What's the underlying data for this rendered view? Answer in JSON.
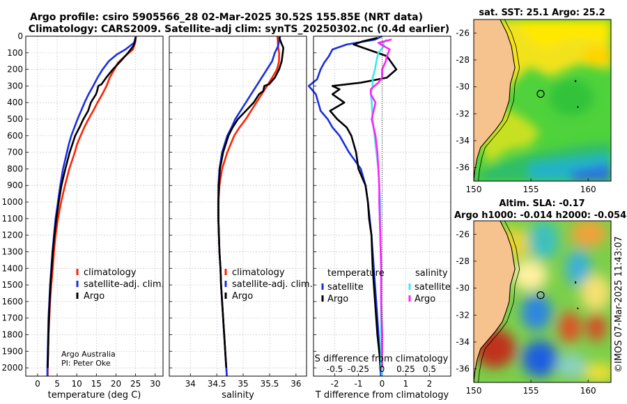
{
  "title_line1": "Argo profile: csiro 5905566_28 02-Mar-2025 30.52S 155.85E (NRT data)",
  "title_line2": "Climatology: CARS2009. Satellite-adj clim: synTS_20250302.nc (0.4d earlier)",
  "credit_line1": "Argo Australia",
  "credit_line2": "PI: Peter Oke",
  "side_label": "©IMOS 07-Mar-2025 11:43:07",
  "colors": {
    "climatology": "#ff2200",
    "satellite": "#1a2ee0",
    "argo": "#000000",
    "sat_s": "#40e8e8",
    "argo_s": "#ff22ff"
  },
  "chart_data": [
    {
      "type": "line",
      "panel": "temperature",
      "xlabel": "temperature (deg C)",
      "ylabel": "",
      "xlim": [
        -3,
        32
      ],
      "ylim": [
        2050,
        0
      ],
      "xticks": [
        0,
        5,
        10,
        15,
        20,
        25,
        30
      ],
      "xtick_labels": [
        "0",
        "5",
        "10",
        "15",
        "20",
        "25",
        "30"
      ],
      "yticks": [
        0,
        100,
        200,
        300,
        400,
        500,
        600,
        700,
        800,
        900,
        1000,
        1100,
        1200,
        1300,
        1400,
        1500,
        1600,
        1700,
        1800,
        1900,
        2000
      ],
      "ytick_labels": [
        "0",
        "100",
        "200",
        "300",
        "400",
        "500",
        "600",
        "700",
        "800",
        "900",
        "1000",
        "1100",
        "1200",
        "1300",
        "1400",
        "1500",
        "1600",
        "1700",
        "1800",
        "1900",
        "2000"
      ],
      "legend": [
        "climatology",
        "satellite-adj. clim.",
        "Argo"
      ],
      "series": [
        {
          "name": "climatology",
          "depth": [
            0,
            40,
            80,
            120,
            160,
            200,
            250,
            300,
            350,
            400,
            450,
            500,
            550,
            600,
            650,
            700,
            800,
            900,
            1000,
            1100,
            1200,
            1300,
            1400,
            1500,
            1600,
            1700,
            1800,
            1900,
            2000,
            2050
          ],
          "values": [
            25.1,
            24.9,
            24.3,
            22.3,
            20.5,
            19.6,
            18.4,
            17.6,
            16.5,
            15.3,
            14.2,
            13.0,
            11.9,
            11.0,
            10.1,
            9.5,
            8.1,
            7.0,
            6.0,
            5.2,
            4.6,
            4.2,
            3.9,
            3.5,
            3.2,
            3.0,
            2.8,
            2.7,
            2.6,
            2.6
          ]
        },
        {
          "name": "satellite-adj. clim.",
          "depth": [
            0,
            40,
            80,
            110,
            150,
            200,
            250,
            300,
            350,
            400,
            450,
            500,
            550,
            600,
            650,
            700,
            800,
            900,
            1000,
            1100,
            1200,
            1300,
            1400,
            1500,
            1600,
            1700,
            1800,
            1900,
            2000,
            2050
          ],
          "values": [
            25.1,
            24.6,
            22.4,
            20.2,
            18.2,
            16.6,
            15.3,
            14.2,
            13.0,
            12.0,
            11.1,
            10.2,
            9.4,
            8.6,
            8.0,
            7.5,
            6.5,
            5.8,
            5.2,
            4.6,
            4.2,
            3.8,
            3.5,
            3.2,
            3.0,
            2.8,
            2.7,
            2.6,
            2.5,
            2.5
          ]
        },
        {
          "name": "Argo",
          "depth": [
            5,
            30,
            60,
            100,
            150,
            200,
            250,
            290,
            300,
            330,
            350,
            400,
            450,
            500,
            550,
            600,
            650,
            700,
            800,
            900,
            1000,
            1100,
            1200,
            1300,
            1400,
            1500,
            1600,
            1700,
            1800,
            1900,
            2000
          ],
          "values": [
            25.0,
            24.9,
            24.4,
            23.1,
            21.2,
            19.2,
            17.5,
            16.3,
            15.5,
            15.2,
            14.9,
            13.6,
            12.9,
            11.7,
            10.7,
            9.6,
            8.9,
            8.2,
            7.1,
            6.1,
            5.4,
            4.8,
            4.3,
            3.9,
            3.6,
            3.3,
            3.1,
            2.9,
            2.8,
            2.7,
            2.6
          ]
        }
      ]
    },
    {
      "type": "line",
      "panel": "salinity",
      "xlabel": "salinity",
      "xlim": [
        33.6,
        36.2
      ],
      "ylim": [
        2050,
        0
      ],
      "xticks": [
        34,
        34.5,
        35,
        35.5,
        36
      ],
      "xtick_labels": [
        "34",
        "34.5",
        "35",
        "35.5",
        "36"
      ],
      "legend": [
        "climatology",
        "satellite-adj. clim.",
        "Argo"
      ],
      "series": [
        {
          "name": "climatology",
          "depth": [
            0,
            60,
            100,
            150,
            200,
            250,
            300,
            350,
            400,
            450,
            500,
            550,
            600,
            700,
            800,
            900,
            1000,
            1100,
            1200,
            1300,
            1400,
            1500,
            1600,
            1700,
            1800,
            1900,
            2000,
            2050
          ],
          "values": [
            35.65,
            35.66,
            35.68,
            35.68,
            35.64,
            35.55,
            35.45,
            35.35,
            35.25,
            35.15,
            35.05,
            34.93,
            34.83,
            34.7,
            34.6,
            34.55,
            34.53,
            34.53,
            34.54,
            34.55,
            34.57,
            34.58,
            34.6,
            34.62,
            34.64,
            34.66,
            34.68,
            34.69
          ]
        },
        {
          "name": "satellite-adj. clim.",
          "depth": [
            0,
            60,
            100,
            150,
            200,
            250,
            300,
            350,
            400,
            450,
            500,
            550,
            600,
            700,
            800,
            900,
            1000,
            1100,
            1200,
            1300,
            1400,
            1500,
            1600,
            1700,
            1800,
            1900,
            2000,
            2050
          ],
          "values": [
            35.7,
            35.66,
            35.6,
            35.55,
            35.45,
            35.35,
            35.25,
            35.15,
            35.05,
            34.95,
            34.85,
            34.78,
            34.7,
            34.6,
            34.55,
            34.53,
            34.53,
            34.53,
            34.54,
            34.55,
            34.57,
            34.58,
            34.6,
            34.62,
            34.64,
            34.66,
            34.68,
            34.69
          ]
        },
        {
          "name": "Argo",
          "depth": [
            5,
            40,
            70,
            100,
            150,
            200,
            250,
            290,
            300,
            330,
            350,
            400,
            450,
            500,
            550,
            600,
            700,
            800,
            900,
            1000,
            1100,
            1200,
            1300,
            1400,
            1500,
            1600,
            1700,
            1800,
            1900,
            2000
          ],
          "values": [
            35.68,
            35.72,
            35.76,
            35.75,
            35.73,
            35.68,
            35.6,
            35.49,
            35.4,
            35.38,
            35.3,
            35.2,
            35.05,
            34.9,
            34.8,
            34.72,
            34.62,
            34.56,
            34.54,
            34.53,
            34.53,
            34.54,
            34.55,
            34.57,
            34.58,
            34.6,
            34.62,
            34.64,
            34.66,
            34.68
          ]
        }
      ]
    },
    {
      "type": "line",
      "panel": "difference",
      "xlabel": "T difference from climatology",
      "xlabel_top": "S difference from climatology",
      "xlim": [
        -2.9,
        2.9
      ],
      "ylim": [
        2050,
        0
      ],
      "xticks": [
        -2,
        -1,
        0,
        1,
        2
      ],
      "xtick_labels": [
        "-2",
        "-1",
        "0",
        "1",
        "2"
      ],
      "xticks_top": [
        -0.5,
        -0.25,
        0,
        0.25,
        0.5
      ],
      "xtick_labels_top": [
        "-0.5",
        "-0.25",
        "0",
        "0.25",
        "0.5"
      ],
      "s_scale": 4,
      "legend_temperature": [
        "temperature",
        "satellite",
        "Argo"
      ],
      "legend_salinity": [
        "salinity",
        "satellite",
        "Argo"
      ],
      "series": [
        {
          "name": "temperature satellite",
          "depth": [
            0,
            20,
            50,
            80,
            120,
            160,
            200,
            260,
            300,
            350,
            400,
            450,
            500,
            550,
            600,
            700,
            800,
            900,
            1000,
            1200,
            1400,
            1600,
            1800,
            2000,
            2050
          ],
          "values": [
            0,
            -0.3,
            -1.5,
            -2.1,
            -2.25,
            -2.45,
            -2.6,
            -2.75,
            -3.1,
            -2.8,
            -2.7,
            -2.6,
            -2.3,
            -2.1,
            -1.8,
            -1.4,
            -0.9,
            -0.7,
            -0.6,
            -0.45,
            -0.35,
            -0.25,
            -0.15,
            -0.08,
            -0.05
          ]
        },
        {
          "name": "temperature Argo",
          "depth": [
            10,
            30,
            50,
            80,
            120,
            160,
            200,
            250,
            280,
            300,
            320,
            350,
            400,
            450,
            500,
            550,
            600,
            650,
            700,
            800,
            900,
            1000,
            1100,
            1200,
            1400,
            1600,
            1800,
            2000
          ],
          "values": [
            -0.2,
            -0.8,
            -1.2,
            -0.6,
            0.2,
            0.4,
            0.6,
            0.2,
            -0.9,
            -2.1,
            -1.8,
            -2.1,
            -1.6,
            -2.2,
            -1.9,
            -1.5,
            -1.3,
            -1.2,
            -1.1,
            -1.0,
            -0.7,
            -0.6,
            -0.55,
            -0.45,
            -0.4,
            -0.3,
            -0.2,
            -0.05
          ]
        },
        {
          "name": "salinity satellite",
          "depth": [
            20,
            40,
            60,
            100,
            150,
            200,
            250,
            300,
            350,
            400,
            500,
            600,
            700,
            800,
            900,
            1000,
            1200,
            1400,
            1600,
            1800,
            2000,
            2050
          ],
          "values": [
            0.05,
            0.01,
            0.02,
            -0.04,
            -0.06,
            -0.075,
            -0.1,
            -0.1,
            -0.12,
            -0.11,
            -0.1,
            -0.08,
            -0.06,
            -0.04,
            -0.03,
            -0.02,
            -0.02,
            -0.01,
            -0.01,
            -0.01,
            -0.01,
            0.0
          ]
        },
        {
          "name": "salinity Argo",
          "depth": [
            20,
            40,
            60,
            80,
            120,
            150,
            200,
            250,
            280,
            300,
            320,
            350,
            400,
            450,
            500,
            550,
            600,
            700,
            800,
            900,
            1000,
            1200,
            1400,
            1600,
            1800,
            2000
          ],
          "values": [
            0.1,
            -0.04,
            0.02,
            0.08,
            0.05,
            0.04,
            0.0,
            0.0,
            -0.04,
            -0.08,
            -0.12,
            -0.12,
            -0.07,
            -0.09,
            -0.11,
            -0.09,
            -0.07,
            -0.05,
            -0.04,
            -0.03,
            -0.03,
            -0.02,
            -0.01,
            -0.01,
            0.0,
            0.0
          ]
        }
      ]
    },
    {
      "type": "heatmap",
      "panel": "sat_sst_map",
      "title": "sat. SST: 25.1 Argo: 25.2",
      "xlim": [
        150,
        162
      ],
      "ylim": [
        -37,
        -25
      ],
      "xticks": [
        150,
        155,
        160
      ],
      "xtick_labels": [
        "150",
        "155",
        "160"
      ],
      "yticks": [
        -26,
        -28,
        -30,
        -32,
        -34,
        -36
      ],
      "ytick_labels": [
        "-26",
        "-28",
        "-30",
        "-32",
        "-34",
        "-36"
      ],
      "float_position": [
        155.85,
        -30.52
      ],
      "coastline": {
        "lon": [
          152.3,
          152.9,
          153.3,
          153.6,
          153.2,
          153.1,
          152.8,
          152.5,
          151.9,
          151.3,
          150.6,
          150.3,
          150.1,
          150.0
        ],
        "lat": [
          -25.0,
          -26.0,
          -27.0,
          -28.6,
          -29.8,
          -31.0,
          -31.8,
          -32.5,
          -33.2,
          -33.8,
          -34.5,
          -35.3,
          -36.2,
          -37.0
        ]
      }
    },
    {
      "type": "heatmap",
      "panel": "sla_map",
      "title": "Altim. SLA: -0.17",
      "subtitle": "Argo h1000: -0.014 h2000: -0.054",
      "xlim": [
        150,
        162
      ],
      "ylim": [
        -37,
        -25
      ],
      "xticks": [
        150,
        155,
        160
      ],
      "xtick_labels": [
        "150",
        "155",
        "160"
      ],
      "yticks": [
        -26,
        -28,
        -30,
        -32,
        -34,
        -36
      ],
      "ytick_labels": [
        "-26",
        "-28",
        "-30",
        "-32",
        "-34",
        "-36"
      ],
      "float_position": [
        155.85,
        -30.52
      ],
      "coastline": {
        "lon": [
          152.3,
          152.9,
          153.3,
          153.6,
          153.2,
          153.1,
          152.8,
          152.5,
          151.9,
          151.3,
          150.6,
          150.3,
          150.1,
          150.0
        ],
        "lat": [
          -25.0,
          -26.0,
          -27.0,
          -28.6,
          -29.8,
          -31.0,
          -31.8,
          -32.5,
          -33.2,
          -33.8,
          -34.5,
          -35.3,
          -36.2,
          -37.0
        ]
      }
    }
  ]
}
